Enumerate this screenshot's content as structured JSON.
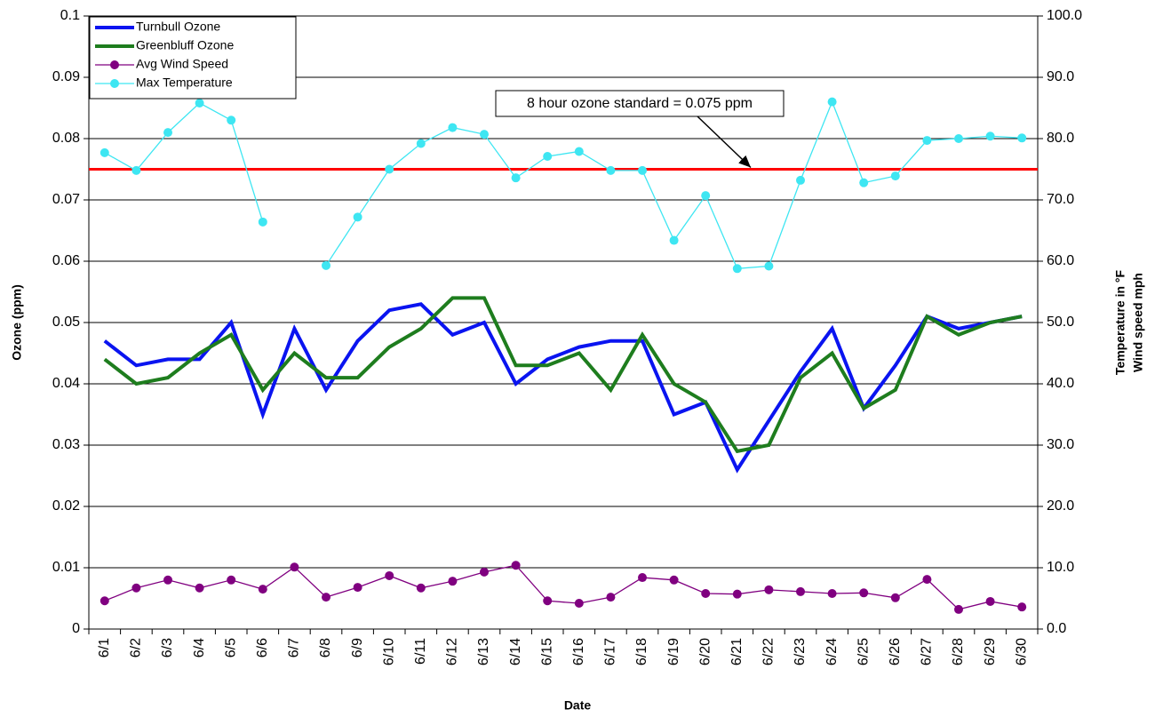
{
  "chart_data": {
    "type": "line",
    "xlabel": "Date",
    "ylabel": "Ozone (ppm)",
    "y2label": [
      "Temperature in °F",
      "Wind speed mph"
    ],
    "categories": [
      "6/1",
      "6/2",
      "6/3",
      "6/4",
      "6/5",
      "6/6",
      "6/7",
      "6/8",
      "6/9",
      "6/10",
      "6/11",
      "6/12",
      "6/13",
      "6/14",
      "6/15",
      "6/16",
      "6/17",
      "6/18",
      "6/19",
      "6/20",
      "6/21",
      "6/22",
      "6/23",
      "6/24",
      "6/25",
      "6/26",
      "6/27",
      "6/28",
      "6/29",
      "6/30"
    ],
    "series": [
      {
        "name": "Turnbull Ozone",
        "color": "#0a14f0",
        "width": 4,
        "marker": false,
        "values": [
          0.047,
          0.043,
          0.044,
          0.044,
          0.05,
          0.035,
          0.049,
          0.039,
          0.047,
          0.052,
          0.053,
          0.048,
          0.05,
          0.04,
          0.044,
          0.046,
          0.047,
          0.047,
          0.035,
          0.037,
          0.026,
          0.034,
          0.042,
          0.049,
          0.036,
          0.043,
          0.051,
          0.049,
          0.05,
          0.051
        ]
      },
      {
        "name": "Greenbluff Ozone",
        "color": "#1e7d1e",
        "width": 4,
        "marker": false,
        "values": [
          0.044,
          0.04,
          0.041,
          0.045,
          0.048,
          0.039,
          0.045,
          0.041,
          0.041,
          0.046,
          0.049,
          0.054,
          0.054,
          0.043,
          0.043,
          0.045,
          0.039,
          0.048,
          0.04,
          0.037,
          0.029,
          0.03,
          0.041,
          0.045,
          0.036,
          0.039,
          0.051,
          0.048,
          0.05,
          0.051
        ]
      },
      {
        "name": "Avg Wind Speed",
        "color": "#800080",
        "width": 1.3,
        "marker": true,
        "axis": "y2",
        "values": [
          4.6,
          6.7,
          8.0,
          6.7,
          8.0,
          6.5,
          10.1,
          5.2,
          6.8,
          8.7,
          6.7,
          7.8,
          9.3,
          10.4,
          4.6,
          4.2,
          5.2,
          8.4,
          8.0,
          5.8,
          5.7,
          6.4,
          6.1,
          5.8,
          5.9,
          5.1,
          8.1,
          3.2,
          4.5,
          3.6
        ]
      },
      {
        "name": "Max Temperature",
        "color": "#3ee6f2",
        "width": 1.3,
        "marker": true,
        "axis": "y2",
        "values": [
          77.7,
          74.8,
          81.0,
          85.8,
          83.0,
          66.4,
          null,
          59.3,
          67.2,
          75.0,
          79.2,
          81.8,
          80.7,
          73.6,
          77.1,
          77.9,
          74.8,
          74.8,
          63.4,
          70.7,
          58.8,
          59.2,
          73.2,
          86.0,
          72.8,
          73.9,
          79.7,
          80.0,
          80.4,
          80.1
        ]
      }
    ],
    "ylim": [
      0,
      0.1
    ],
    "yticks": [
      0,
      0.01,
      0.02,
      0.03,
      0.04,
      0.05,
      0.06,
      0.07,
      0.08,
      0.09,
      0.1
    ],
    "y2lim": [
      0,
      100
    ],
    "y2ticks": [
      {
        "value": 0,
        "label": "0.0"
      },
      {
        "value": 10,
        "label": "10.0"
      },
      {
        "value": 20,
        "label": "20.0"
      },
      {
        "value": 30,
        "label": "30.0"
      },
      {
        "value": 40,
        "label": "40.0"
      },
      {
        "value": 50,
        "label": "50.0"
      },
      {
        "value": 60,
        "label": "60.0"
      },
      {
        "value": 70,
        "label": "70.0"
      },
      {
        "value": 80,
        "label": "80.0"
      },
      {
        "value": 90,
        "label": "90.0"
      },
      {
        "value": 100,
        "label": "100.0"
      }
    ],
    "reference_line": {
      "value": 0.075,
      "color": "#ff0000",
      "label": "8 hour ozone standard = 0.075 ppm"
    },
    "grid": true,
    "legend": "upper left"
  }
}
